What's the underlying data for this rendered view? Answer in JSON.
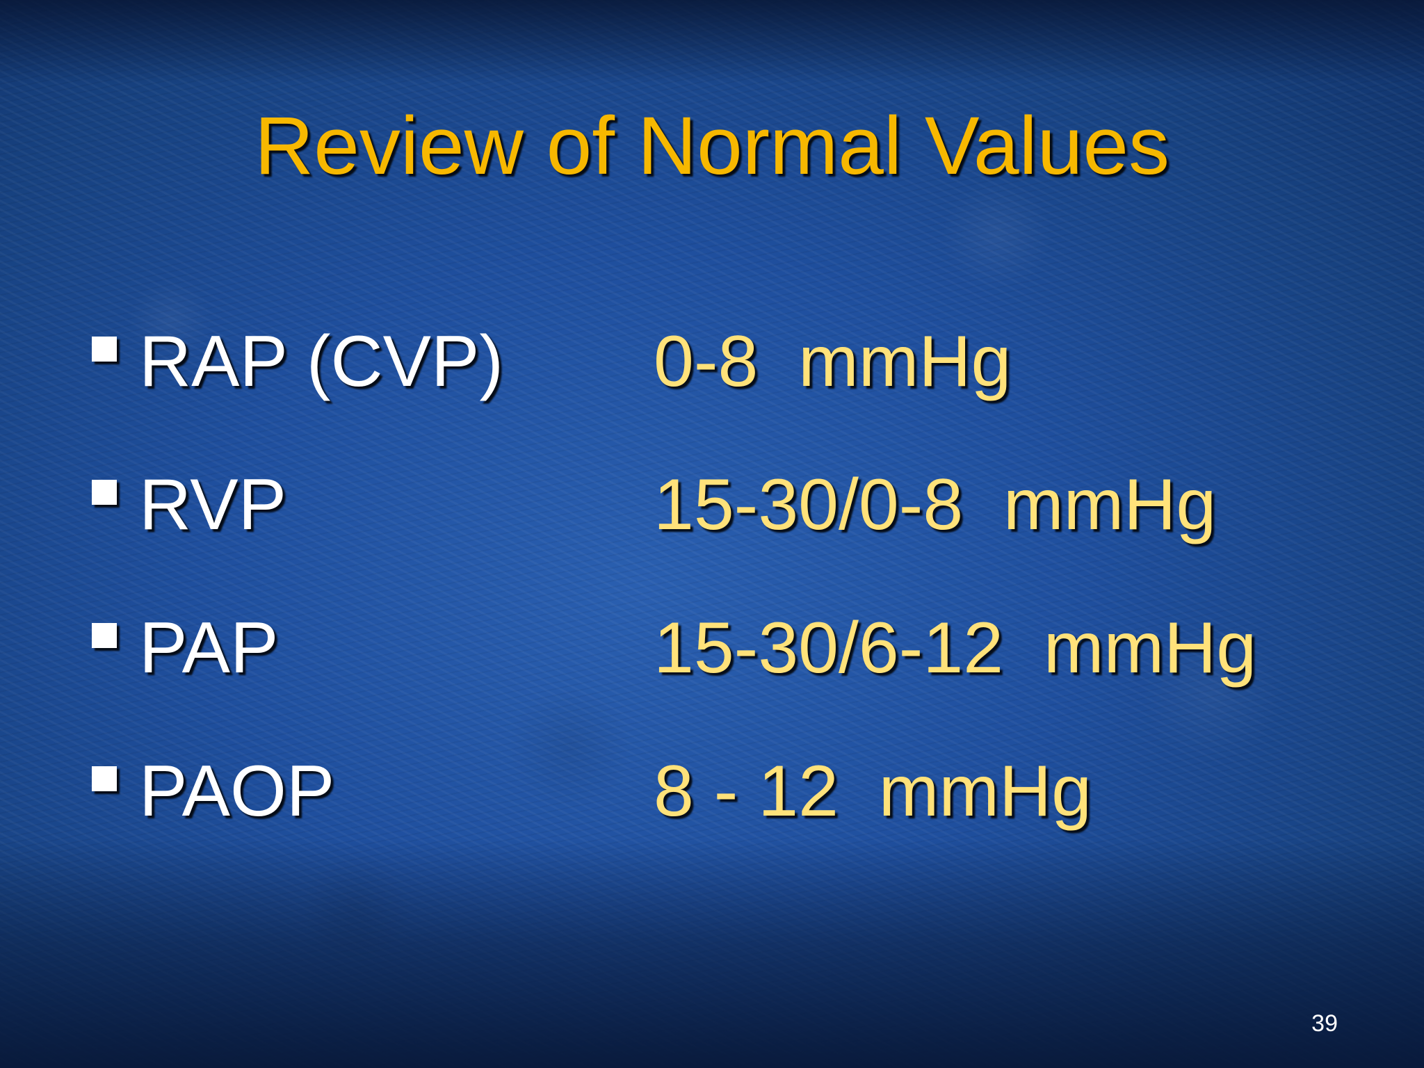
{
  "slide": {
    "title": "Review of Normal Values",
    "rows": [
      {
        "label": "RAP (CVP)",
        "value": "0-8  mmHg"
      },
      {
        "label": "RVP",
        "value": "15-30/0-8  mmHg"
      },
      {
        "label": "PAP",
        "value": "15-30/6-12  mmHg"
      },
      {
        "label": "PAOP",
        "value": "8 - 12  mmHg"
      }
    ],
    "page_number": "39"
  },
  "colors": {
    "background": "#1f4f9e",
    "title": "#f7b800",
    "label": "#ffffff",
    "value": "#ffe27a"
  },
  "icons": {
    "bullet": "square-bullet-icon"
  }
}
